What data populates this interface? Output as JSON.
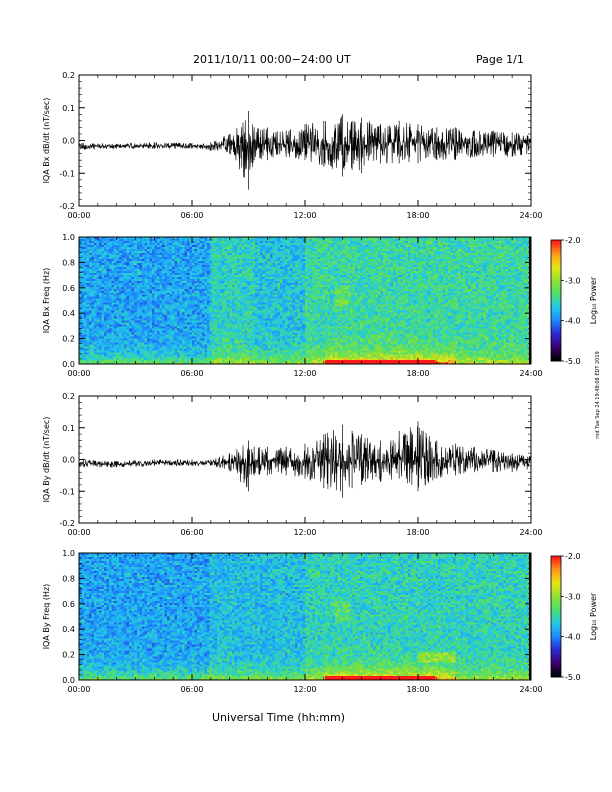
{
  "header": {
    "date_title": "2011/10/11  00:00−24:00 UT",
    "page_label": "Page 1/1",
    "footer_stamp": "rnd Tue Sep 24 19:48:08 EDT 2019"
  },
  "xaxis_title": "Universal Time (hh:mm)",
  "colors": {
    "trace": "#000000",
    "colormap": [
      "#000000",
      "#3b006e",
      "#2a2ad4",
      "#1e8cff",
      "#22c8e6",
      "#4ddf6f",
      "#8fe032",
      "#e6e61a",
      "#ff9a1a",
      "#ff1a1a"
    ]
  },
  "chart_data": [
    {
      "type": "line",
      "ylabel": "IQA Bx dB/dt (nT/sec)",
      "xticks": [
        "00:00",
        "06:00",
        "12:00",
        "18:00",
        "24:00"
      ],
      "xlim": [
        0,
        24
      ],
      "ylim": [
        -0.2,
        0.2
      ],
      "yticks": [
        "-0.2",
        "-0.1",
        "0.0",
        "0.1",
        "0.2"
      ],
      "series": [
        {
          "x": [
            0,
            2,
            4,
            6,
            7,
            8,
            9,
            9.3,
            10,
            11,
            12,
            13,
            14,
            14.5,
            15,
            16,
            17,
            18,
            19,
            20,
            21,
            22,
            23,
            24
          ],
          "y_low": [
            -0.03,
            -0.025,
            -0.025,
            -0.025,
            -0.03,
            -0.04,
            -0.15,
            -0.06,
            -0.06,
            -0.05,
            -0.06,
            -0.08,
            -0.11,
            -0.09,
            -0.1,
            -0.07,
            -0.07,
            -0.07,
            -0.06,
            -0.06,
            -0.05,
            -0.05,
            -0.05,
            -0.04
          ],
          "y_high": [
            -0.005,
            -0.01,
            -0.005,
            -0.008,
            -0.005,
            0.02,
            0.09,
            0.04,
            0.04,
            0.03,
            0.05,
            0.06,
            0.08,
            0.06,
            0.07,
            0.05,
            0.06,
            0.05,
            0.04,
            0.04,
            0.03,
            0.03,
            0.025,
            0.02
          ]
        }
      ]
    },
    {
      "type": "heatmap",
      "ylabel": "IQA Bx Freq (Hz)",
      "xticks": [
        "00:00",
        "06:00",
        "12:00",
        "18:00",
        "24:00"
      ],
      "xlim": [
        0,
        24
      ],
      "ylim": [
        0.0,
        1.0
      ],
      "yticks": [
        "0.0",
        "0.2",
        "0.4",
        "0.6",
        "0.8",
        "1.0"
      ],
      "colorbar": {
        "label": "Log₁₀ Power",
        "ticks": [
          "-2.0",
          "-3.0",
          "-4.0",
          "-5.0"
        ],
        "range": [
          -5.0,
          -2.0
        ]
      }
    },
    {
      "type": "line",
      "ylabel": "IQA By dB/dt (nT/sec)",
      "xticks": [
        "00:00",
        "06:00",
        "12:00",
        "18:00",
        "24:00"
      ],
      "xlim": [
        0,
        24
      ],
      "ylim": [
        -0.2,
        0.2
      ],
      "yticks": [
        "-0.2",
        "-0.1",
        "0.0",
        "0.1",
        "0.2"
      ],
      "series": [
        {
          "x": [
            0,
            2,
            4,
            6,
            7,
            8,
            9,
            9.3,
            10,
            11,
            12,
            13,
            14,
            14.5,
            15,
            16,
            17,
            18,
            19,
            20,
            21,
            22,
            23,
            24
          ],
          "y_low": [
            -0.025,
            -0.025,
            -0.02,
            -0.02,
            -0.02,
            -0.035,
            -0.1,
            -0.05,
            -0.05,
            -0.05,
            -0.06,
            -0.09,
            -0.12,
            -0.09,
            -0.08,
            -0.07,
            -0.06,
            -0.1,
            -0.06,
            -0.05,
            -0.04,
            -0.04,
            -0.04,
            -0.03
          ],
          "y_high": [
            0.0,
            -0.005,
            0.0,
            0.0,
            0.0,
            0.02,
            0.06,
            0.04,
            0.04,
            0.04,
            0.05,
            0.08,
            0.11,
            0.09,
            0.08,
            0.06,
            0.09,
            0.12,
            0.06,
            0.05,
            0.04,
            0.03,
            0.02,
            0.015
          ]
        }
      ]
    },
    {
      "type": "heatmap",
      "ylabel": "IQA By Freq (Hz)",
      "xticks": [
        "00:00",
        "06:00",
        "12:00",
        "18:00",
        "24:00"
      ],
      "xlim": [
        0,
        24
      ],
      "ylim": [
        0.0,
        1.0
      ],
      "yticks": [
        "0.0",
        "0.2",
        "0.4",
        "0.6",
        "0.8",
        "1.0"
      ],
      "colorbar": {
        "label": "Log₁₀ Power",
        "ticks": [
          "-2.0",
          "-3.0",
          "-4.0",
          "-5.0"
        ],
        "range": [
          -5.0,
          -2.0
        ]
      }
    }
  ]
}
